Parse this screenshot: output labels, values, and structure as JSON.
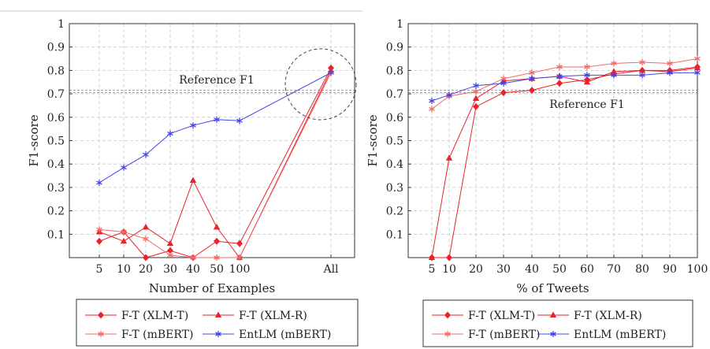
{
  "chart_data": [
    {
      "type": "line",
      "xlabel": "Number of Examples",
      "ylabel": "F1-score",
      "x": [
        "5",
        "10",
        "20",
        "30",
        "40",
        "50",
        "100",
        "All"
      ],
      "ylim": [
        0,
        1
      ],
      "yticks": [
        "0.1",
        "0.2",
        "0.3",
        "0.4",
        "0.5",
        "0.6",
        "0.7",
        "0.8",
        "0.9",
        "1"
      ],
      "grid": true,
      "reference": {
        "label": "Reference F1",
        "value": 0.71
      },
      "annotation": "dashed circle around All",
      "legend_position": "bottom",
      "series": [
        {
          "name": "F-T (XLM-T)",
          "color": "#e8232a",
          "marker": "diamond",
          "values": [
            0.07,
            0.11,
            0.0,
            0.03,
            0.0,
            0.07,
            0.06,
            0.81
          ]
        },
        {
          "name": "F-T (XLM-R)",
          "color": "#e8232a",
          "marker": "triangle",
          "values": [
            0.11,
            0.07,
            0.13,
            0.06,
            0.33,
            0.13,
            0.0,
            0.8
          ]
        },
        {
          "name": "F-T (mBERT)",
          "color": "#f06a6a",
          "marker": "star",
          "values": [
            0.12,
            0.11,
            0.08,
            0.01,
            0.0,
            0.0,
            0.0,
            0.79
          ]
        },
        {
          "name": "EntLM (mBERT)",
          "color": "#4444e8",
          "marker": "star",
          "values": [
            0.32,
            0.385,
            0.44,
            0.53,
            0.565,
            0.59,
            0.585,
            0.79
          ]
        }
      ]
    },
    {
      "type": "line",
      "xlabel": "% of Tweets",
      "ylabel": "F1-score",
      "x": [
        5,
        10,
        20,
        30,
        40,
        50,
        60,
        70,
        80,
        90,
        100
      ],
      "ylim": [
        0,
        1
      ],
      "yticks": [
        "0.1",
        "0.2",
        "0.3",
        "0.4",
        "0.5",
        "0.6",
        "0.7",
        "0.8",
        "0.9",
        "1"
      ],
      "grid": true,
      "reference": {
        "label": "Reference F1",
        "value": 0.71
      },
      "legend_position": "bottom",
      "series": [
        {
          "name": "F-T (XLM-T)",
          "color": "#e8232a",
          "marker": "diamond",
          "values": [
            0.0,
            0.0,
            0.645,
            0.705,
            0.715,
            0.745,
            0.76,
            0.785,
            0.8,
            0.8,
            0.815
          ]
        },
        {
          "name": "F-T (XLM-R)",
          "color": "#e8232a",
          "marker": "triangle",
          "values": [
            0.0,
            0.425,
            0.68,
            0.755,
            0.765,
            0.775,
            0.75,
            0.795,
            0.8,
            0.795,
            0.81
          ]
        },
        {
          "name": "F-T (mBERT)",
          "color": "#f06a6a",
          "marker": "star",
          "values": [
            0.635,
            0.69,
            0.71,
            0.765,
            0.79,
            0.815,
            0.815,
            0.83,
            0.835,
            0.83,
            0.85
          ]
        },
        {
          "name": "EntLM (mBERT)",
          "color": "#4444e8",
          "marker": "star",
          "values": [
            0.67,
            0.695,
            0.735,
            0.745,
            0.765,
            0.775,
            0.78,
            0.78,
            0.78,
            0.79,
            0.79
          ]
        }
      ]
    }
  ]
}
